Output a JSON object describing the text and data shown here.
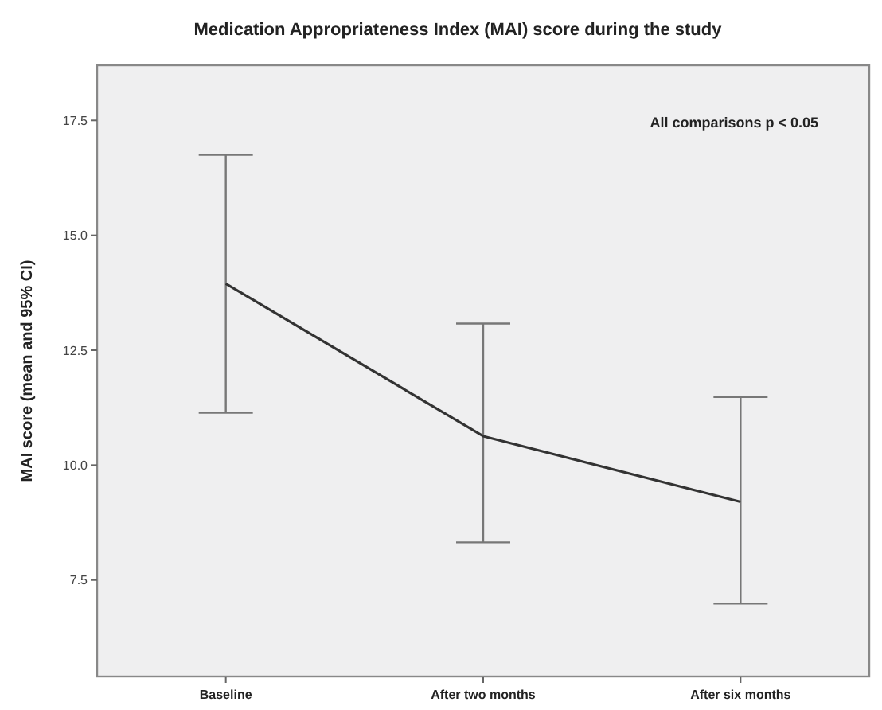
{
  "chart_data": {
    "type": "line",
    "title": "Medication Appropriateness Index (MAI) score during the study",
    "ylabel": "MAI score (mean and 95% CI)",
    "annotations": [
      "All comparisons p < 0.05"
    ],
    "categories": [
      "Baseline",
      "After two months",
      "After six months"
    ],
    "series": [
      {
        "color": "#333333",
        "values": [
          13.95,
          10.63,
          9.2
        ],
        "errors": [
          [
            11.14,
            16.75
          ],
          [
            8.32,
            13.08
          ],
          [
            6.99,
            11.48
          ]
        ]
      }
    ],
    "ylim": [
      5.4,
      18.7
    ],
    "yticks": [
      {
        "value": 7.5,
        "label": "7.5"
      },
      {
        "value": 10,
        "label": "10.0"
      },
      {
        "value": 12.5,
        "label": "12.5"
      },
      {
        "value": 15,
        "label": "15.0"
      },
      {
        "value": 17.5,
        "label": "17.5"
      }
    ],
    "grid": false,
    "marker": "none",
    "line_style": "solid"
  }
}
